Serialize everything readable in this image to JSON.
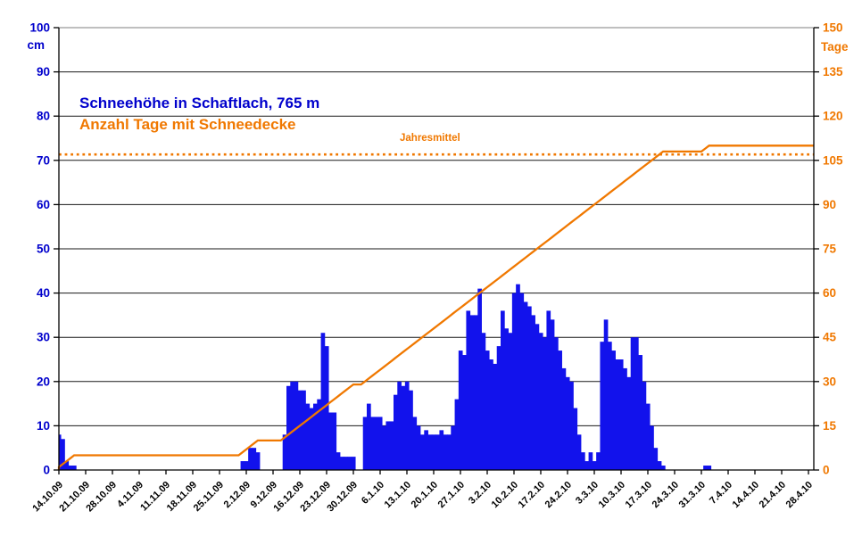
{
  "chart": {
    "title_line1": "Schneehöhe in Schaftlach, 765 m",
    "title_line2": "Anzahl Tage mit Schneedecke",
    "annotation_jahresmittel": "Jahresmittel",
    "left_axis": {
      "unit": "cm",
      "range": [
        0,
        100
      ],
      "ticks": [
        0,
        10,
        20,
        30,
        40,
        50,
        60,
        70,
        80,
        90,
        100
      ],
      "color": "#0000CC"
    },
    "right_axis": {
      "unit": "Tage",
      "range": [
        0,
        150
      ],
      "ticks": [
        0,
        15,
        30,
        45,
        60,
        75,
        90,
        105,
        120,
        135,
        150
      ],
      "color": "#F07800"
    },
    "colors": {
      "bars": "#1212EC",
      "line": "#F07800",
      "dotted": "#F07800",
      "grid": "#1a1a1a",
      "top_border": "#aaaaaa",
      "x_labels": "#000000"
    }
  },
  "chart_data": {
    "type": "combo",
    "x_start_date": "14.10.09",
    "x_end_date": "28.4.10",
    "x_tick_labels": [
      "14.10.09",
      "21.10.09",
      "28.10.09",
      "4.11.09",
      "11.11.09",
      "18.11.09",
      "25.11.09",
      "2.12.09",
      "9.12.09",
      "16.12.09",
      "23.12.09",
      "30.12.09",
      "6.1.10",
      "13.1.10",
      "20.1.10",
      "27.1.10",
      "3.2.10",
      "10.2.10",
      "17.2.10",
      "24.2.10",
      "3.3.10",
      "10.3.10",
      "17.3.10",
      "24.3.10",
      "31.3.10",
      "7.4.10",
      "14.4.10",
      "21.4.10",
      "28.4.10"
    ],
    "series": [
      {
        "name": "Schneehöhe",
        "type": "bar",
        "axis": "left",
        "unit": "cm",
        "daily_values": [
          8,
          7,
          2,
          1,
          1,
          0,
          0,
          0,
          0,
          0,
          0,
          0,
          0,
          0,
          0,
          0,
          0,
          0,
          0,
          0,
          0,
          0,
          0,
          0,
          0,
          0,
          0,
          0,
          0,
          0,
          0,
          0,
          0,
          0,
          0,
          0,
          0,
          0,
          0,
          0,
          0,
          0,
          0,
          0,
          0,
          0,
          0,
          0,
          2,
          2,
          5,
          5,
          4,
          0,
          0,
          0,
          0,
          0,
          0,
          8,
          19,
          20,
          20,
          18,
          18,
          15,
          14,
          15,
          16,
          31,
          28,
          13,
          13,
          4,
          3,
          3,
          3,
          3,
          0,
          0,
          12,
          15,
          12,
          12,
          12,
          10,
          11,
          11,
          17,
          20,
          19,
          20,
          18,
          12,
          10,
          8,
          9,
          8,
          8,
          8,
          9,
          8,
          8,
          10,
          16,
          27,
          26,
          36,
          35,
          35,
          41,
          31,
          27,
          25,
          24,
          28,
          36,
          32,
          31,
          40,
          42,
          40,
          38,
          37,
          35,
          33,
          31,
          30,
          36,
          34,
          30,
          27,
          23,
          21,
          20,
          14,
          8,
          4,
          2,
          4,
          2,
          4,
          29,
          34,
          29,
          27,
          25,
          25,
          23,
          21,
          30,
          30,
          26,
          20,
          15,
          10,
          5,
          2,
          1,
          0,
          0,
          0,
          0,
          0,
          0,
          0,
          0,
          0,
          0,
          1,
          1,
          0,
          0,
          0,
          0,
          0,
          0,
          0,
          0,
          0,
          0,
          0,
          0,
          0,
          0,
          0,
          0,
          0,
          0,
          0,
          0,
          0,
          0,
          0,
          0,
          0,
          0
        ]
      },
      {
        "name": "Anzahl Tage mit Schneedecke",
        "type": "line",
        "axis": "right",
        "unit": "Tage",
        "derivation": "cumulative count of days with snow height > 0",
        "key_values": {
          "after_october": 5,
          "after_early_december": 10,
          "after_december": 29,
          "late_march_plateau": 108,
          "final_total": 110
        }
      },
      {
        "name": "Jahresmittel",
        "type": "dotted-line",
        "axis": "right",
        "value": 107
      }
    ],
    "max_snow_height_cm": 42
  }
}
